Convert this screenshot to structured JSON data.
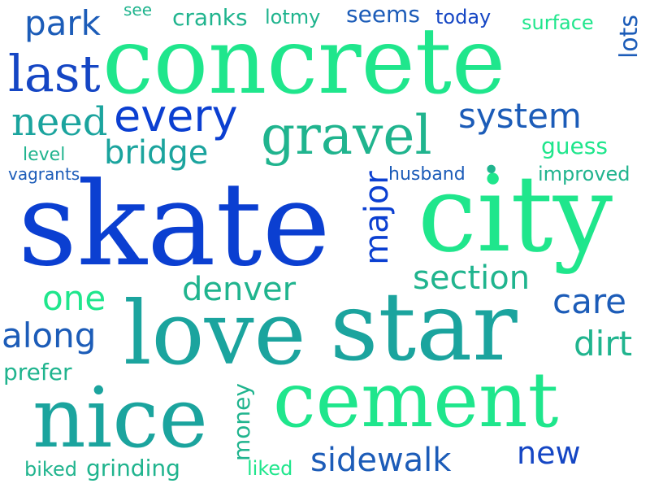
{
  "cloud": {
    "words": {
      "skate": "skate",
      "city": "city",
      "concrete": "concrete",
      "star": "star",
      "love": "love",
      "cement": "cement",
      "nice": "nice",
      "gravel": "gravel",
      "every": "every",
      "last": "last",
      "park": "park",
      "system": "system",
      "need": "need",
      "major": "major",
      "bridge": "bridge",
      "section": "section",
      "denver": "denver",
      "one": "one",
      "care": "care",
      "along": "along",
      "dirt": "dirt",
      "prefer": "prefer",
      "money": "money",
      "sidewalk": "sidewalk",
      "new": "new",
      "grinding": "grinding",
      "biked": "biked",
      "liked": "liked",
      "lots": "lots",
      "guess": "guess",
      "improved": "improved",
      "husband": "husband",
      "surface": "surface",
      "today": "today",
      "seems": "seems",
      "cranks": "cranks",
      "lotmy": "lotmy",
      "see": "see",
      "level": "level",
      "vagrants": "vagrants",
      "dot": "•"
    },
    "colors": {
      "royal_blue": "#0b3fd1",
      "blue": "#1546c4",
      "steel_blue": "#1c5cb8",
      "teal": "#1ba49e",
      "sea_green": "#20b48e",
      "mint": "#22d18f",
      "spring_green": "#1fe68c"
    }
  }
}
